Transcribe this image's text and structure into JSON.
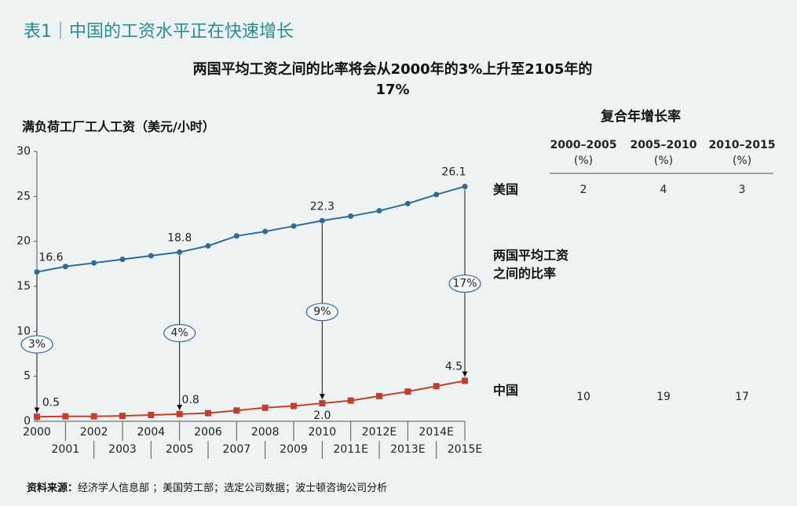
{
  "header": {
    "title": "表1｜中国的工资水平正在快速增长"
  },
  "chart_data": {
    "type": "line",
    "title": "两国平均工资之间的比率将会从2000年的3%上升至2105年的17%",
    "y_label": "满负荷工厂工人工资（美元/小时）",
    "categories": [
      "2000",
      "2001",
      "2002",
      "2003",
      "2004",
      "2005",
      "2006",
      "2007",
      "2008",
      "2009",
      "2010",
      "2011E",
      "2012E",
      "2013E",
      "2014E",
      "2015E"
    ],
    "series": [
      {
        "name": "美国",
        "color": "#2e6b98",
        "marker": "circle",
        "values": [
          16.6,
          17.2,
          17.6,
          18.0,
          18.4,
          18.8,
          19.5,
          20.6,
          21.1,
          21.7,
          22.3,
          22.8,
          23.4,
          24.2,
          25.2,
          26.1
        ],
        "value_labels": [
          "16.6",
          null,
          null,
          null,
          null,
          "18.8",
          null,
          null,
          null,
          null,
          "22.3",
          null,
          null,
          null,
          null,
          "26.1"
        ]
      },
      {
        "name": "中国",
        "color": "#c0412b",
        "marker": "square",
        "values": [
          0.5,
          0.55,
          0.55,
          0.6,
          0.7,
          0.8,
          0.9,
          1.2,
          1.5,
          1.7,
          2.0,
          2.3,
          2.8,
          3.3,
          3.9,
          4.5
        ],
        "value_labels": [
          "0.5",
          null,
          null,
          null,
          null,
          "0.8",
          null,
          null,
          null,
          null,
          "2.0",
          null,
          null,
          null,
          null,
          "4.5"
        ]
      }
    ],
    "ylim": [
      0,
      30
    ],
    "yticks": [
      0,
      5,
      10,
      15,
      20,
      25,
      30
    ],
    "grid": false,
    "ratio_label": "两国平均工资之间的比率",
    "ratio_annotations": [
      {
        "at": "2000",
        "value": 3,
        "label": "3%"
      },
      {
        "at": "2005",
        "value": 4,
        "label": "4%"
      },
      {
        "at": "2010",
        "value": 9,
        "label": "9%"
      },
      {
        "at": "2015E",
        "value": 17,
        "label": "17%"
      }
    ]
  },
  "growth_table": {
    "title": "复合年增长率",
    "columns": [
      {
        "period": "2000–2005",
        "unit": "(%)"
      },
      {
        "period": "2005–2010",
        "unit": "(%)"
      },
      {
        "period": "2010–2015",
        "unit": "(%)"
      }
    ],
    "rows": [
      [
        2,
        4,
        3
      ],
      [
        10,
        19,
        17
      ]
    ]
  },
  "source": {
    "label": "资料来源：",
    "text": "经济学人信息部 ；美国劳工部；选定公司数据；波士顿咨询公司分析"
  }
}
